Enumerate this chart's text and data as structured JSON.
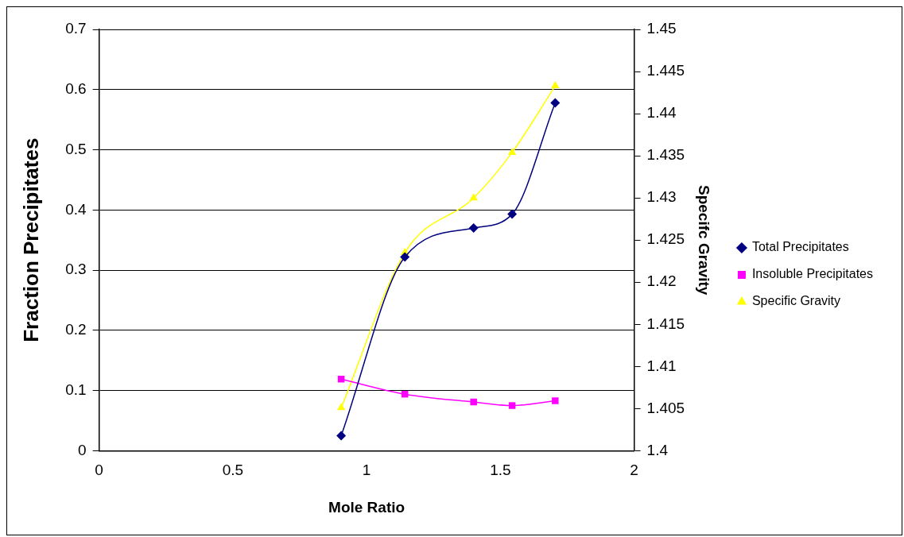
{
  "chart_data": {
    "type": "line",
    "xlabel": "Mole Ratio",
    "ylabel": "Fraction Precipitates",
    "y2label": "Specifc Gravity",
    "x": [
      0.905,
      1.143,
      1.4,
      1.544,
      1.705
    ],
    "series": [
      {
        "name": "Total Precipitates",
        "color": "#000080",
        "marker": "diamond",
        "values": [
          0.025,
          0.322,
          0.37,
          0.393,
          0.578
        ]
      },
      {
        "name": "Insoluble Precipitates",
        "color": "#ff00ff",
        "marker": "square",
        "values": [
          0.119,
          0.094,
          0.081,
          0.075,
          0.083
        ]
      },
      {
        "name": "Specific Gravity",
        "color": "#ffff00",
        "marker": "triangle",
        "axis": "y2",
        "values": [
          1.4051,
          1.4235,
          1.43,
          1.4354,
          1.4433
        ]
      }
    ],
    "xlim": [
      0,
      2
    ],
    "xticks": [
      0,
      0.5,
      1,
      1.5,
      2
    ],
    "ylim": [
      0,
      0.7
    ],
    "yticks": [
      0,
      0.1,
      0.2,
      0.3,
      0.4,
      0.5,
      0.6,
      0.7
    ],
    "y2lim": [
      1.4,
      1.45
    ],
    "y2ticks": [
      1.4,
      1.405,
      1.41,
      1.415,
      1.42,
      1.425,
      1.43,
      1.435,
      1.44,
      1.445,
      1.45
    ],
    "grid": "y",
    "legend": "right"
  }
}
